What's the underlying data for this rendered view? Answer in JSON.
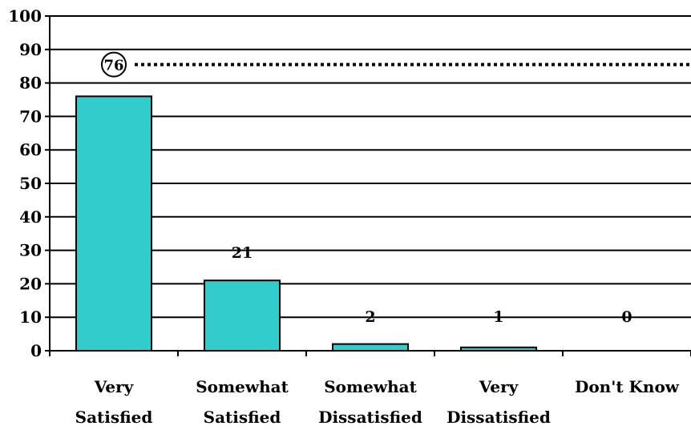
{
  "chart_data": {
    "type": "bar",
    "categories": [
      [
        "Very",
        "Satisfied"
      ],
      [
        "Somewhat",
        "Satisfied"
      ],
      [
        "Somewhat",
        "Dissatisfied"
      ],
      [
        "Very",
        "Dissatisfied"
      ],
      [
        "Don't Know"
      ]
    ],
    "values": [
      76,
      21,
      2,
      1,
      0
    ],
    "data_labels": [
      "76",
      "21",
      "2",
      "1",
      "0"
    ],
    "ylim": [
      0,
      100
    ],
    "y_ticks": [
      0,
      10,
      20,
      30,
      40,
      50,
      60,
      70,
      80,
      90,
      100
    ],
    "grid": true,
    "bar_color": "#33cccc",
    "reference_line": {
      "value": 85.5,
      "style": "dotted"
    },
    "highlighted_label": "76"
  }
}
